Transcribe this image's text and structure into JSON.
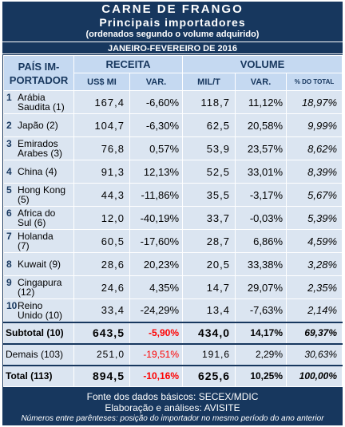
{
  "title": "CARNE DE FRANGO",
  "subtitle": "Principais importadores",
  "note": "(ordenados segundo o volume adquirido)",
  "period": "JANEIRO-FEVEREIRO DE 2016",
  "headers": {
    "pais_line1": "PAÍS IM-",
    "pais_line2": "PORTADOR",
    "receita": "RECEITA",
    "volume": "VOLUME",
    "us_mi": "US$ MI",
    "var_receita": "VAR.",
    "mil_t": "MIL/T",
    "var_volume": "VAR.",
    "pct_total": "% DO TOTAL"
  },
  "rows": [
    {
      "rank": "1",
      "name_line1": "Arábia",
      "name_line2": "Saudita (1)",
      "receita": "167,4",
      "var_receita": "-6,60%",
      "volume": "118,7",
      "var_volume": "11,12%",
      "pct": "18,97%"
    },
    {
      "rank": "2",
      "name_line1": "Japão (2)",
      "name_line2": "",
      "receita": "104,7",
      "var_receita": "-6,30%",
      "volume": "62,5",
      "var_volume": "20,58%",
      "pct": "9,99%"
    },
    {
      "rank": "3",
      "name_line1": "Emirados",
      "name_line2": "Arabes (3)",
      "receita": "76,8",
      "var_receita": "0,57%",
      "volume": "53,9",
      "var_volume": "23,57%",
      "pct": "8,62%"
    },
    {
      "rank": "4",
      "name_line1": "China (4)",
      "name_line2": "",
      "receita": "91,3",
      "var_receita": "12,13%",
      "volume": "52,5",
      "var_volume": "33,01%",
      "pct": "8,39%"
    },
    {
      "rank": "5",
      "name_line1": "Hong Kong",
      "name_line2": "(5)",
      "receita": "44,3",
      "var_receita": "-11,86%",
      "volume": "35,5",
      "var_volume": "-3,17%",
      "pct": "5,67%"
    },
    {
      "rank": "6",
      "name_line1": "Africa do",
      "name_line2": "Sul (6)",
      "receita": "12,0",
      "var_receita": "-40,19%",
      "volume": "33,7",
      "var_volume": "-0,03%",
      "pct": "5,39%"
    },
    {
      "rank": "7",
      "name_line1": "Holanda",
      "name_line2": "(7)",
      "receita": "60,5",
      "var_receita": "-17,60%",
      "volume": "28,7",
      "var_volume": "6,86%",
      "pct": "4,59%"
    },
    {
      "rank": "8",
      "name_line1": "Kuwait (9)",
      "name_line2": "",
      "receita": "28,6",
      "var_receita": "20,23%",
      "volume": "20,5",
      "var_volume": "33,38%",
      "pct": "3,28%"
    },
    {
      "rank": "9",
      "name_line1": "Cingapura",
      "name_line2": "(12)",
      "receita": "24,6",
      "var_receita": "4,35%",
      "volume": "14,7",
      "var_volume": "29,07%",
      "pct": "2,35%"
    },
    {
      "rank": "10",
      "name_line1": "Reino",
      "name_line2": "Unido (10)",
      "receita": "33,4",
      "var_receita": "-24,29%",
      "volume": "13,4",
      "var_volume": "-7,63%",
      "pct": "2,14%"
    }
  ],
  "subtotal": {
    "label": "Subtotal (10)",
    "receita": "643,5",
    "var_receita": "-5,90%",
    "volume": "434,0",
    "var_volume": "14,17%",
    "pct": "69,37%"
  },
  "demais": {
    "label": "Demais (103)",
    "receita": "251,0",
    "var_receita": "-19,51%",
    "volume": "191,6",
    "var_volume": "2,29%",
    "pct": "30,63%"
  },
  "total": {
    "label": "Total (113)",
    "receita": "894,5",
    "var_receita": "-10,16%",
    "volume": "625,6",
    "var_volume": "10,25%",
    "pct": "100,00%"
  },
  "footer": {
    "source": "Fonte dos dados básicos: SECEX/MDIC",
    "elaboration": "Elaboração e análises: AVISITE",
    "note": "Números entre parênteses: posição do importador no mesmo período do ano anterior"
  },
  "colors": {
    "navy": "#17375e",
    "header_bg": "#c5d9f1",
    "row_bg": "#dbe5f1",
    "negative": "#ff0000"
  }
}
